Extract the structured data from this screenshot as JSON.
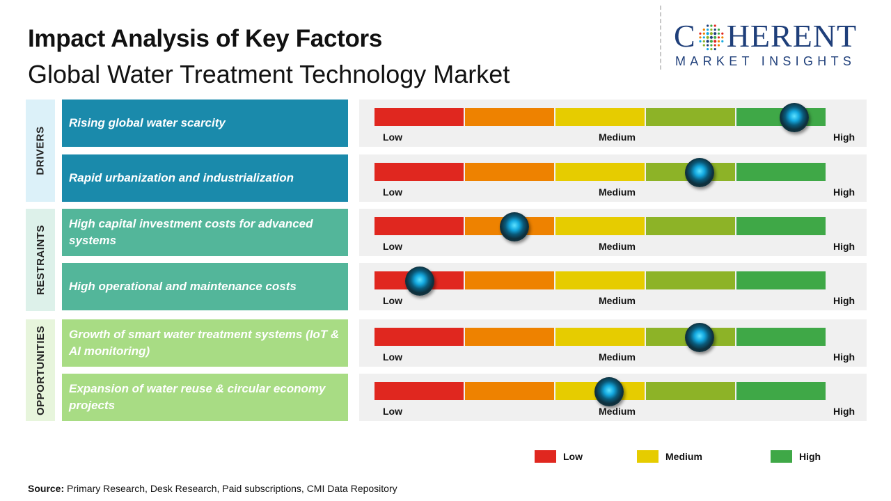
{
  "header": {
    "title": "Impact Analysis of Key Factors",
    "subtitle": "Global Water Treatment Technology Market"
  },
  "logo": {
    "word_left": "C",
    "word_right": "HERENT",
    "tagline": "MARKET INSIGHTS"
  },
  "colors": {
    "drivers": "#1a8aab",
    "drivers_bg": "#dcf1f9",
    "restraints": "#53b69a",
    "restraints_bg": "#ddf1ea",
    "opportunities": "#a8dc84",
    "opportunities_bg": "#e7f5dc",
    "scale": [
      "#e0271f",
      "#ee8200",
      "#e6cc00",
      "#8db327",
      "#3fa847"
    ]
  },
  "chart_data": {
    "type": "table",
    "scale": [
      "Low",
      "Medium",
      "High"
    ],
    "groups": [
      {
        "category": "DRIVERS",
        "factors": [
          {
            "label": "Rising global water scarcity",
            "impact": 0.93
          },
          {
            "label": "Rapid urbanization and industrialization",
            "impact": 0.72
          }
        ]
      },
      {
        "category": "RESTRAINTS",
        "factors": [
          {
            "label": "High capital investment costs for advanced systems",
            "impact": 0.31
          },
          {
            "label": "High operational and maintenance costs",
            "impact": 0.1
          }
        ]
      },
      {
        "category": "OPPORTUNITIES",
        "factors": [
          {
            "label": "Growth of smart water treatment systems (IoT & AI monitoring)",
            "impact": 0.72
          },
          {
            "label": "Expansion of water reuse & circular economy projects",
            "impact": 0.52
          }
        ]
      }
    ],
    "legend": [
      "Low",
      "Medium",
      "High"
    ]
  },
  "source": {
    "label": "Source:",
    "text": " Primary Research, Desk Research, Paid subscriptions, CMI Data Repository"
  }
}
